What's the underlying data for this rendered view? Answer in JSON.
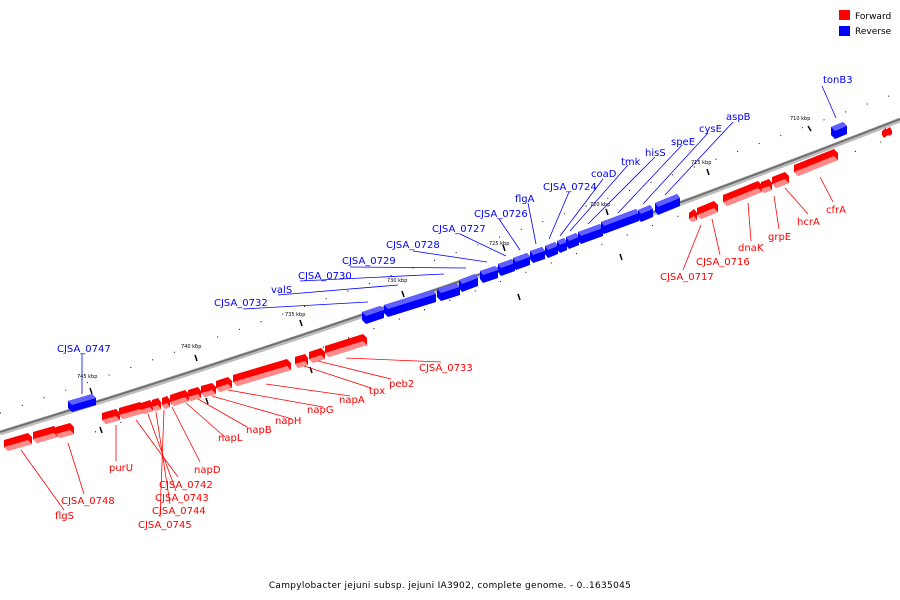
{
  "legend": [
    {
      "label": "Forward",
      "color": "#ff0000"
    },
    {
      "label": "Reverse",
      "color": "#0000ff"
    }
  ],
  "caption": "Campylobacter jejuni subsp. jejuni IA3902, complete genome. - 0..1635045",
  "colors": {
    "forward": "#ff0000",
    "reverse": "#0000ff",
    "backbone": "#8a8a8a"
  },
  "ticks": [
    "710 kbp",
    "715 kbp",
    "720 kbp",
    "725 kbp",
    "730 kbp",
    "735 kbp",
    "740 kbp",
    "745 kbp"
  ],
  "forward_genes": [
    "CJSA_0733",
    "peb2",
    "tpx",
    "napA",
    "napG",
    "napH",
    "napB",
    "napL",
    "napD",
    "purU",
    "CJSA_0742",
    "CJSA_0743",
    "CJSA_0744",
    "CJSA_0745",
    "flgS",
    "CJSA_0748",
    "CJSA_0717",
    "CJSA_0716",
    "dnaK",
    "grpE",
    "hcrA",
    "cfrA"
  ],
  "reverse_genes": [
    "tonB3",
    "aspB",
    "cysE",
    "speE",
    "hisS",
    "tmk",
    "coaD",
    "CJSA_0724",
    "flgA",
    "CJSA_0726",
    "CJSA_0727",
    "CJSA_0728",
    "CJSA_0729",
    "CJSA_0730",
    "valS",
    "CJSA_0732",
    "CJSA_0747"
  ]
}
